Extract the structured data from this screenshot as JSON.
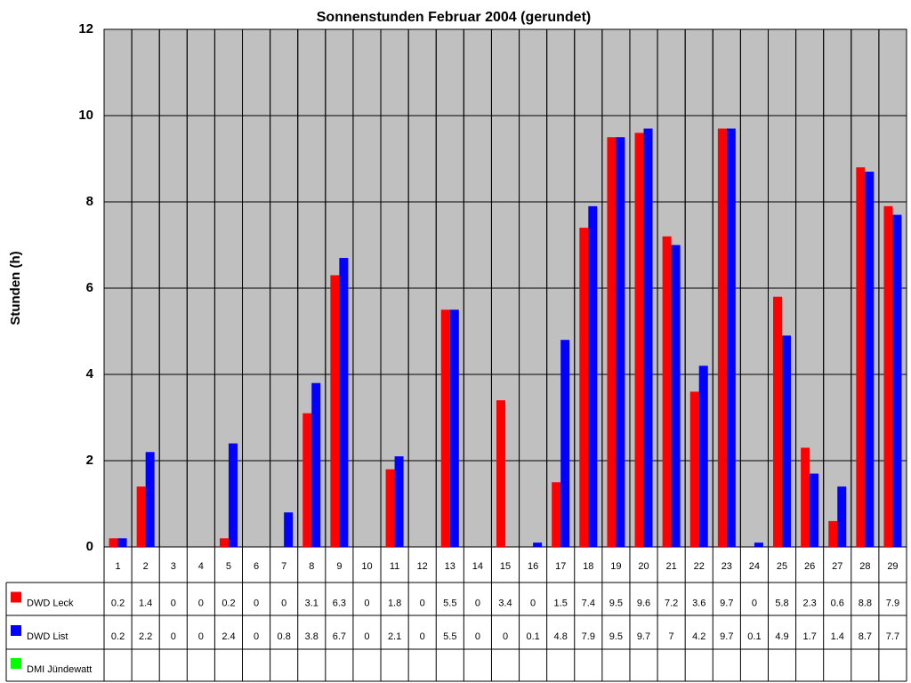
{
  "chart_data": {
    "type": "bar",
    "title": "Sonnenstunden Februar 2004 (gerundet)",
    "y_label": "Stunden (h)",
    "categories": [
      "1",
      "2",
      "3",
      "4",
      "5",
      "6",
      "7",
      "8",
      "9",
      "10",
      "11",
      "12",
      "13",
      "14",
      "15",
      "16",
      "17",
      "18",
      "19",
      "20",
      "21",
      "22",
      "23",
      "24",
      "25",
      "26",
      "27",
      "28",
      "29"
    ],
    "series": [
      {
        "name": "DWD Leck",
        "color": "#ff0000",
        "values": [
          0.2,
          1.4,
          0,
          0,
          0.2,
          0,
          0,
          3.1,
          6.3,
          0,
          1.8,
          0,
          5.5,
          0,
          3.4,
          0,
          1.5,
          7.4,
          9.5,
          9.6,
          7.2,
          3.6,
          9.7,
          0,
          5.8,
          2.3,
          0.6,
          8.8,
          7.9
        ]
      },
      {
        "name": "DWD List",
        "color": "#0000ff",
        "values": [
          0.2,
          2.2,
          0,
          0,
          2.4,
          0,
          0.8,
          3.8,
          6.7,
          0,
          2.1,
          0,
          5.5,
          0,
          0,
          0.1,
          4.8,
          7.9,
          9.5,
          9.7,
          7,
          4.2,
          9.7,
          0.1,
          4.9,
          1.7,
          1.4,
          8.7,
          7.7
        ]
      },
      {
        "name": "DMI Jündewatt",
        "color": "#00ff00",
        "values": [
          null,
          null,
          null,
          null,
          null,
          null,
          null,
          null,
          null,
          null,
          null,
          null,
          null,
          null,
          null,
          null,
          null,
          null,
          null,
          null,
          null,
          null,
          null,
          null,
          null,
          null,
          null,
          null,
          null
        ]
      }
    ],
    "ylim": [
      0,
      12
    ],
    "yticks": [
      0,
      2,
      4,
      6,
      8,
      10,
      12
    ],
    "grid": true,
    "plot_background": "#c0c0c0"
  }
}
